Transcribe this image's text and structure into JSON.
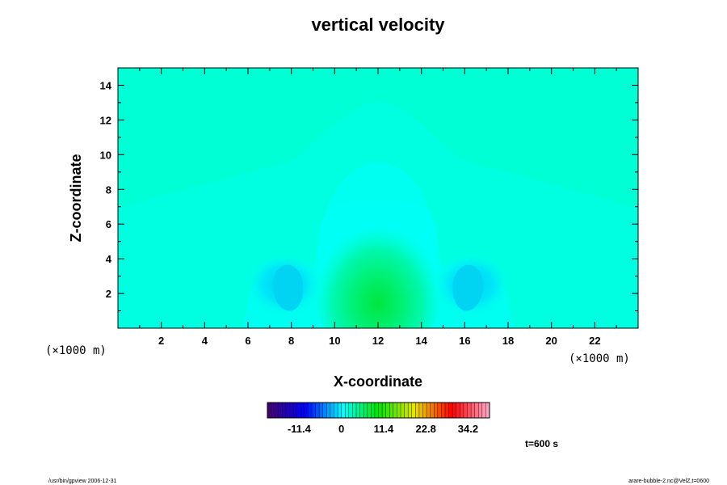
{
  "chart_data": {
    "type": "heatmap",
    "title": "vertical velocity",
    "xlabel": "X-coordinate",
    "ylabel": "Z-coordinate",
    "x_unit_label": "(×1000 m)",
    "y_unit_label": "(×1000 m)",
    "xlim": [
      0,
      24
    ],
    "ylim": [
      0,
      15
    ],
    "x_ticks": [
      "2",
      "4",
      "6",
      "8",
      "10",
      "12",
      "14",
      "16",
      "18",
      "20",
      "22"
    ],
    "y_ticks": [
      "2",
      "4",
      "6",
      "8",
      "10",
      "12",
      "14"
    ],
    "colorbar": {
      "tick_labels": [
        "-11.4",
        "0",
        "11.4",
        "22.8",
        "34.2"
      ],
      "tick_values": [
        -11.4,
        0,
        11.4,
        22.8,
        34.2
      ],
      "range": [
        -20,
        40
      ]
    },
    "features": [
      {
        "kind": "updraft-core",
        "x": 12,
        "z": 2,
        "value": 8
      },
      {
        "kind": "downdraft",
        "x": 8,
        "z": 2.5,
        "value": -3
      },
      {
        "kind": "downdraft",
        "x": 16,
        "z": 2.5,
        "value": -3
      }
    ],
    "background_value": -1,
    "time_label": "t=600 s",
    "footer_left": "/usr/bin/gpview 2006-12-31",
    "footer_right": "arare-bubble-2.nc@VelZ,t=0600"
  }
}
